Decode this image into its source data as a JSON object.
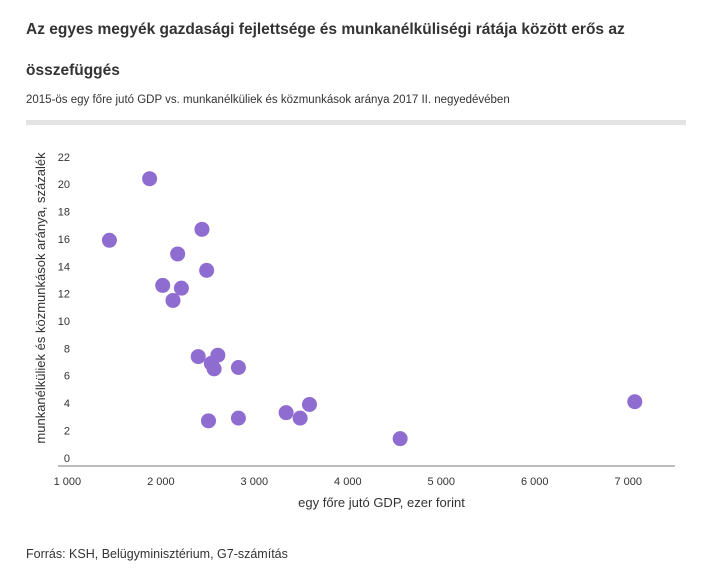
{
  "header": {
    "title": "Az egyes megyék gazdasági fejlettsége és munkanélküliségi rátája között erős az összefüggés",
    "subtitle": "2015-ös egy főre jutó GDP vs. munkanélküliek és közmunkások aránya 2017 II. negyedévében"
  },
  "footer": {
    "source": "Forrás: KSH, Belügyminisztérium, G7-számítás"
  },
  "chart_data": {
    "type": "scatter",
    "title": "",
    "xlabel": "egy főre jutó GDP, ezer forint",
    "ylabel": "munkanélküliek és közmunkások aránya, százalék",
    "xlim": [
      900,
      7500
    ],
    "ylim": [
      -0.6,
      22.5
    ],
    "xticks": [
      1000,
      2000,
      3000,
      4000,
      5000,
      6000,
      7000
    ],
    "xtick_labels": [
      "1 000",
      "2 000",
      "3 000",
      "4 000",
      "5 000",
      "6 000",
      "7 000"
    ],
    "yticks": [
      0,
      2,
      4,
      6,
      8,
      10,
      12,
      14,
      16,
      18,
      20,
      22
    ],
    "ytick_labels": [
      "0",
      "2",
      "4",
      "6",
      "8",
      "10",
      "12",
      "14",
      "16",
      "18",
      "20",
      "22"
    ],
    "grid": false,
    "legend": "none",
    "color": "#8f6cd0",
    "points": [
      {
        "x": 1450,
        "y": 15.9
      },
      {
        "x": 1880,
        "y": 20.4
      },
      {
        "x": 2020,
        "y": 12.6
      },
      {
        "x": 2130,
        "y": 11.5
      },
      {
        "x": 2180,
        "y": 14.9
      },
      {
        "x": 2220,
        "y": 12.4
      },
      {
        "x": 2400,
        "y": 7.4
      },
      {
        "x": 2440,
        "y": 16.7
      },
      {
        "x": 2490,
        "y": 13.7
      },
      {
        "x": 2510,
        "y": 2.7
      },
      {
        "x": 2540,
        "y": 6.9
      },
      {
        "x": 2570,
        "y": 6.5
      },
      {
        "x": 2610,
        "y": 7.5
      },
      {
        "x": 2830,
        "y": 2.9
      },
      {
        "x": 2830,
        "y": 6.6
      },
      {
        "x": 3340,
        "y": 3.3
      },
      {
        "x": 3490,
        "y": 2.9
      },
      {
        "x": 3590,
        "y": 3.9
      },
      {
        "x": 4560,
        "y": 1.4
      },
      {
        "x": 7070,
        "y": 4.1
      }
    ]
  }
}
